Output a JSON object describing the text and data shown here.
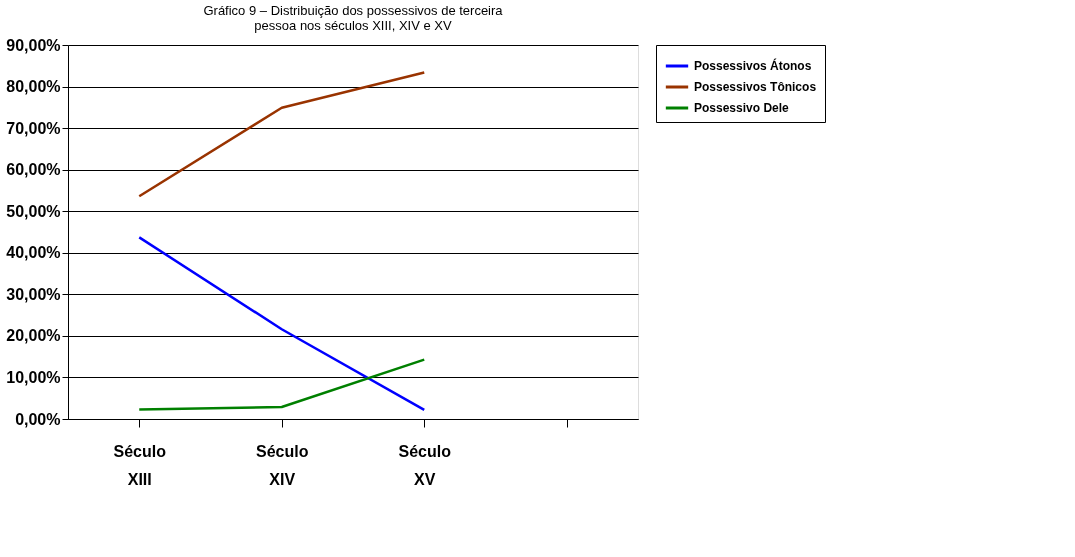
{
  "chart_data": {
    "type": "line",
    "title": [
      "Gráfico 9 – Distribuição dos possessivos de terceira",
      "pessoa nos séculos XIII, XIV e XV"
    ],
    "categories": [
      [
        "Século",
        "XIII"
      ],
      [
        "Século",
        "XIV"
      ],
      [
        "Século",
        "XV"
      ],
      null
    ],
    "series": [
      {
        "name": "Possessivos Átonos",
        "color": "#0000ff",
        "values": [
          43.7,
          21.6,
          2.2,
          null
        ]
      },
      {
        "name": "Possessivos Tônicos",
        "color": "#993300",
        "values": [
          53.6,
          74.9,
          83.4,
          null
        ]
      },
      {
        "name": "Possessivo Dele",
        "color": "#008000",
        "values": [
          2.3,
          2.9,
          14.3,
          null
        ]
      }
    ],
    "ylim": [
      0,
      90
    ],
    "yticks": [
      {
        "value": 0,
        "label": "0,00%"
      },
      {
        "value": 10,
        "label": "10,00%"
      },
      {
        "value": 20,
        "label": "20,00%"
      },
      {
        "value": 30,
        "label": "30,00%"
      },
      {
        "value": 40,
        "label": "40,00%"
      },
      {
        "value": 50,
        "label": "50,00%"
      },
      {
        "value": 60,
        "label": "60,00%"
      },
      {
        "value": 70,
        "label": "70,00%"
      },
      {
        "value": 80,
        "label": "80,00%"
      },
      {
        "value": 90,
        "label": "90,00%"
      }
    ],
    "grid": "y",
    "legend": "right",
    "marker": "none",
    "line_style": "solid"
  }
}
